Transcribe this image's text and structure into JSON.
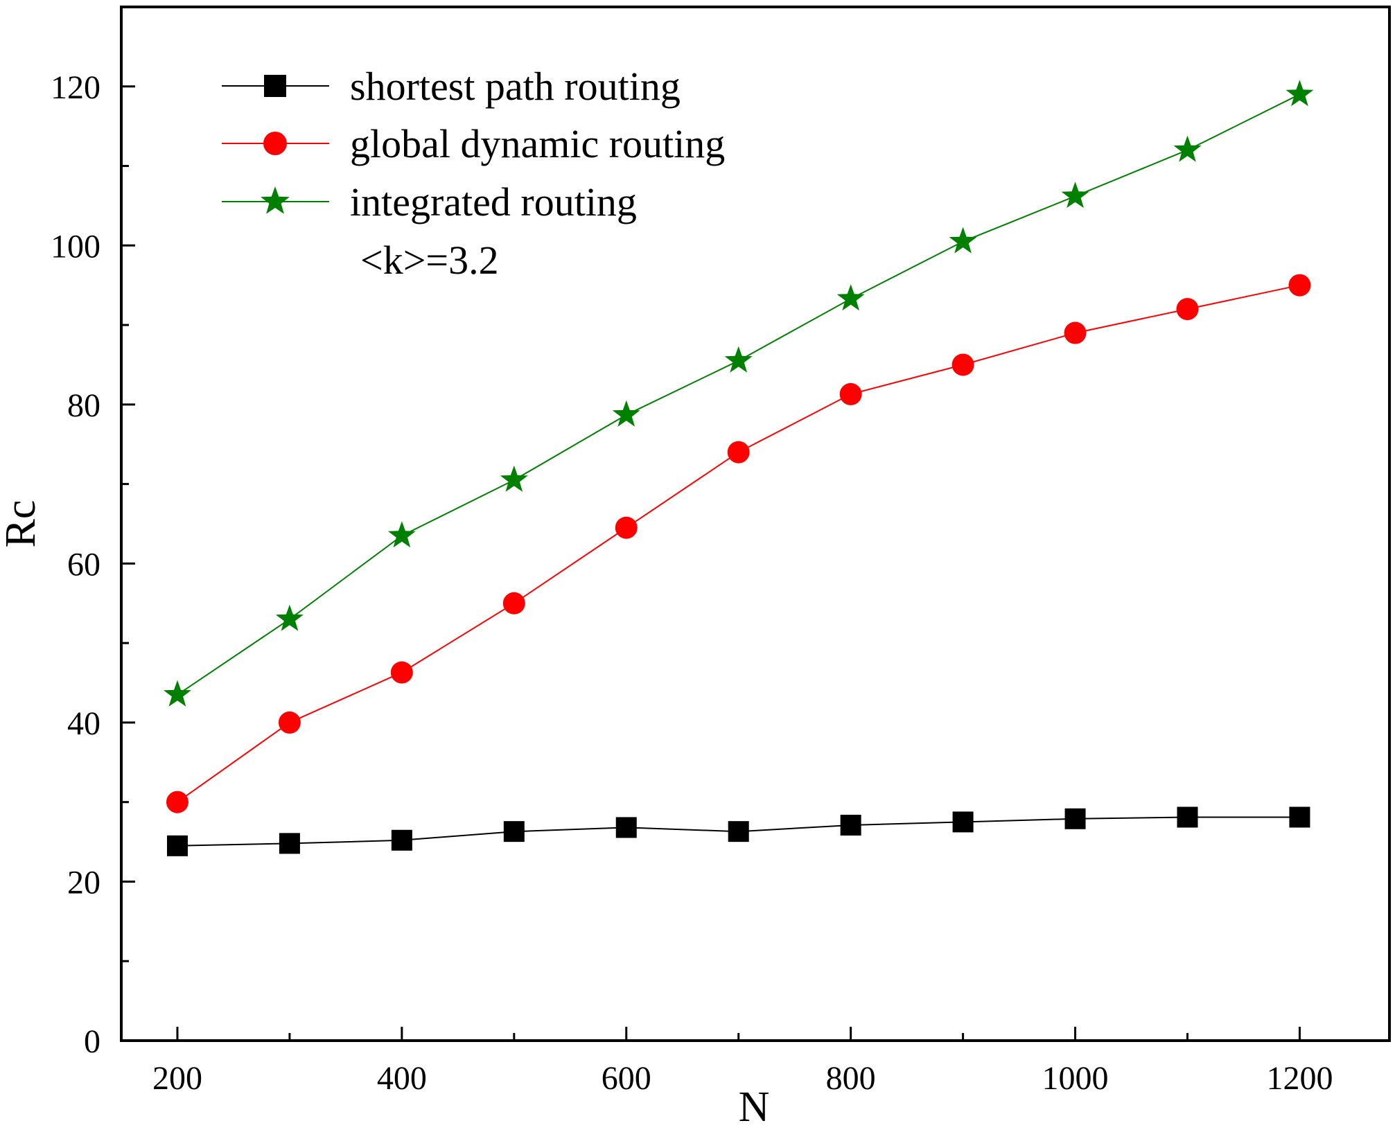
{
  "chart_data": {
    "type": "line",
    "title": "",
    "xlabel": "N",
    "ylabel": "Rc",
    "xlim": [
      150,
      1280
    ],
    "ylim": [
      0,
      130
    ],
    "x_ticks": [
      200,
      400,
      600,
      800,
      1000,
      1200
    ],
    "x_tick_labels": [
      "200",
      "400",
      "600",
      "800",
      "1000",
      "1200"
    ],
    "y_ticks": [
      0,
      20,
      40,
      60,
      80,
      100,
      120
    ],
    "y_tick_labels": [
      "0",
      "20",
      "40",
      "60",
      "80",
      "100",
      "120"
    ],
    "grid": false,
    "legend_position": "top-left",
    "annotation": "<k>=3.2",
    "x": [
      200,
      300,
      400,
      500,
      600,
      700,
      800,
      900,
      1000,
      1100,
      1200
    ],
    "series": [
      {
        "name": "shortest path routing",
        "color": "#000000",
        "marker": "square",
        "values": [
          24.5,
          24.8,
          25.2,
          26.3,
          26.8,
          26.3,
          27.1,
          27.5,
          27.9,
          28.1,
          28.1
        ]
      },
      {
        "name": "global dynamic routing",
        "color": "#ff0000",
        "marker": "circle",
        "values": [
          30.0,
          40.0,
          46.3,
          55.0,
          64.5,
          74.0,
          81.3,
          85.0,
          89.0,
          92.0,
          95.0
        ]
      },
      {
        "name": "integrated routing",
        "color": "#008000",
        "marker": "star",
        "values": [
          43.5,
          53.0,
          63.5,
          70.5,
          78.7,
          85.5,
          93.3,
          100.5,
          106.2,
          112.0,
          119.0
        ]
      }
    ]
  }
}
